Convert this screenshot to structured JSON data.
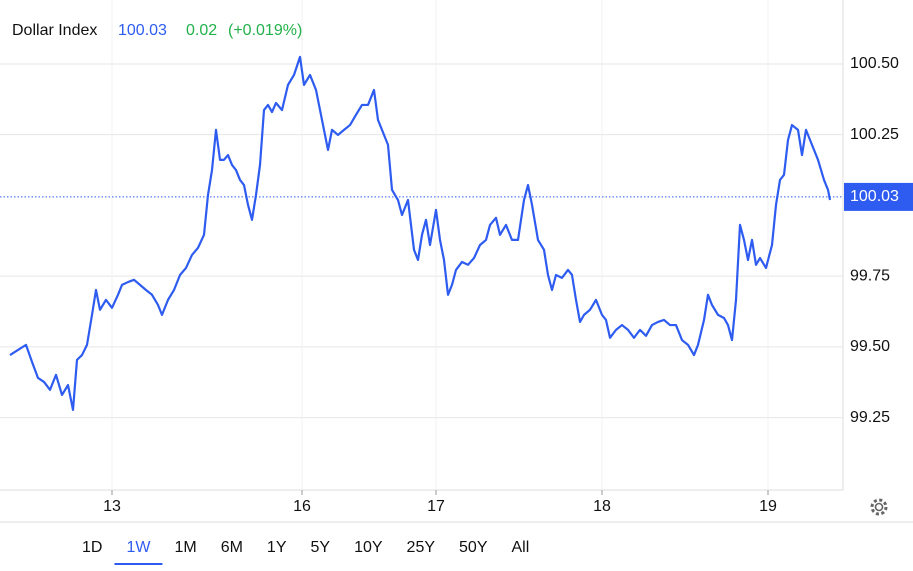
{
  "header": {
    "title": "Dollar Index",
    "change": "0.02",
    "change_pct": "(+0.019%)"
  },
  "chart_data": {
    "type": "line",
    "last_price": 100.03,
    "x": [
      0,
      8,
      16,
      22,
      28,
      34,
      40,
      46,
      52,
      58,
      63,
      67,
      72,
      77,
      82,
      86,
      90,
      96,
      102,
      108,
      112,
      118,
      124,
      130,
      136,
      142,
      148,
      152,
      158,
      164,
      170,
      176,
      182,
      188,
      194,
      198,
      202,
      206,
      210,
      214,
      218,
      222,
      226,
      230,
      234,
      238,
      242,
      246,
      250,
      254,
      258,
      262,
      266,
      272,
      278,
      284,
      290,
      294,
      300,
      306,
      312,
      318,
      322,
      328,
      334,
      340,
      346,
      352,
      358,
      364,
      368,
      372,
      378,
      382,
      388,
      392,
      398,
      404,
      408,
      412,
      416,
      420,
      426,
      430,
      434,
      438,
      442,
      446,
      452,
      458,
      464,
      470,
      476,
      480,
      486,
      490,
      496,
      502,
      508,
      514,
      518,
      522,
      528,
      534,
      538,
      542,
      546,
      552,
      558,
      562,
      566,
      570,
      574,
      580,
      586,
      592,
      596,
      600,
      606,
      612,
      618,
      624,
      630,
      636,
      642,
      648,
      654,
      660,
      666,
      672,
      678,
      684,
      688,
      694,
      698,
      702,
      708,
      714,
      718,
      722,
      726,
      730,
      734,
      738,
      742,
      746,
      750,
      756,
      762,
      766,
      770,
      774,
      778,
      782,
      788,
      792,
      796,
      802,
      808,
      814,
      818,
      820
    ],
    "series": [
      {
        "color": "#2e5cf0",
        "values": [
          99.471,
          99.489,
          99.507,
          99.447,
          99.39,
          99.376,
          99.348,
          99.401,
          99.33,
          99.365,
          99.277,
          99.454,
          99.471,
          99.507,
          99.613,
          99.701,
          99.631,
          99.666,
          99.638,
          99.684,
          99.719,
          99.729,
          99.737,
          99.719,
          99.701,
          99.684,
          99.648,
          99.613,
          99.666,
          99.701,
          99.754,
          99.779,
          99.825,
          99.85,
          99.896,
          100.037,
          100.125,
          100.267,
          100.161,
          100.161,
          100.178,
          100.143,
          100.125,
          100.09,
          100.072,
          100.002,
          99.949,
          100.037,
          100.143,
          100.337,
          100.355,
          100.33,
          100.362,
          100.337,
          100.426,
          100.461,
          100.525,
          100.426,
          100.461,
          100.408,
          100.302,
          100.196,
          100.267,
          100.249,
          100.267,
          100.284,
          100.32,
          100.355,
          100.355,
          100.408,
          100.302,
          100.267,
          100.214,
          100.055,
          100.019,
          99.966,
          100.019,
          99.843,
          99.807,
          99.896,
          99.949,
          99.86,
          99.984,
          99.878,
          99.807,
          99.684,
          99.719,
          99.772,
          99.8,
          99.79,
          99.814,
          99.86,
          99.878,
          99.931,
          99.956,
          99.896,
          99.931,
          99.878,
          99.878,
          100.019,
          100.072,
          100.002,
          99.878,
          99.843,
          99.754,
          99.701,
          99.754,
          99.744,
          99.772,
          99.754,
          99.666,
          99.588,
          99.613,
          99.631,
          99.666,
          99.613,
          99.595,
          99.532,
          99.56,
          99.577,
          99.56,
          99.532,
          99.56,
          99.539,
          99.577,
          99.588,
          99.595,
          99.577,
          99.577,
          99.524,
          99.507,
          99.471,
          99.507,
          99.595,
          99.684,
          99.648,
          99.613,
          99.602,
          99.577,
          99.524,
          99.666,
          99.931,
          99.878,
          99.807,
          99.878,
          99.79,
          99.814,
          99.779,
          99.86,
          100.002,
          100.09,
          100.108,
          100.231,
          100.284,
          100.267,
          100.178,
          100.267,
          100.214,
          100.161,
          100.09,
          100.055,
          100.019
        ]
      }
    ],
    "xlim": [
      -10,
      833
    ],
    "xticks": [
      {
        "value": 102,
        "label": "13"
      },
      {
        "value": 292,
        "label": "16"
      },
      {
        "value": 426,
        "label": "17"
      },
      {
        "value": 592,
        "label": "18"
      },
      {
        "value": 758,
        "label": "19"
      }
    ],
    "ylim": [
      98.994,
      100.726
    ],
    "yticks": [
      {
        "value": 99.25,
        "label": "99.25"
      },
      {
        "value": 99.5,
        "label": "99.50"
      },
      {
        "value": 99.75,
        "label": "99.75"
      },
      {
        "value": 100.25,
        "label": "100.25"
      },
      {
        "value": 100.5,
        "label": "100.50"
      }
    ],
    "grid": true
  },
  "ranges": [
    "1D",
    "1W",
    "1M",
    "6M",
    "1Y",
    "5Y",
    "10Y",
    "25Y",
    "50Y",
    "All"
  ],
  "active_range": "1W"
}
